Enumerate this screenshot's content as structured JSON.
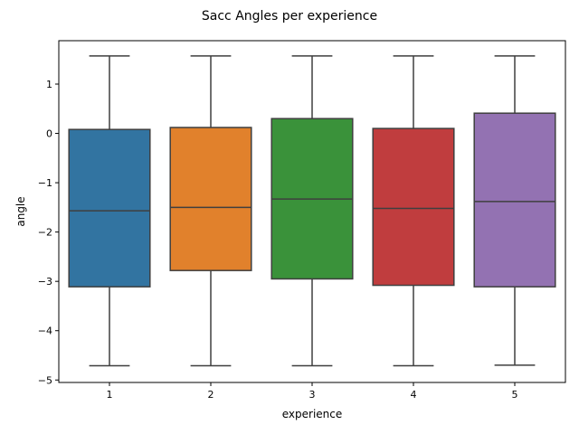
{
  "chart_data": {
    "type": "box",
    "title": "Sacc Angles per experience",
    "xlabel": "experience",
    "ylabel": "angle",
    "categories": [
      "1",
      "2",
      "3",
      "4",
      "5"
    ],
    "y_ticks": [
      1,
      0,
      -1,
      -2,
      -3,
      -4,
      -5
    ],
    "y_tick_labels": [
      "1",
      "0",
      "−1",
      "−2",
      "−3",
      "−4",
      "−5"
    ],
    "ylim": [
      -5.05,
      1.88
    ],
    "grid": false,
    "boxes": [
      {
        "category": "1",
        "min": -4.71,
        "q1": -3.11,
        "median": -1.57,
        "q3": 0.08,
        "max": 1.57,
        "color": "#3274a1"
      },
      {
        "category": "2",
        "min": -4.71,
        "q1": -2.78,
        "median": -1.5,
        "q3": 0.12,
        "max": 1.57,
        "color": "#e1812c"
      },
      {
        "category": "3",
        "min": -4.71,
        "q1": -2.95,
        "median": -1.33,
        "q3": 0.3,
        "max": 1.57,
        "color": "#3a923a"
      },
      {
        "category": "4",
        "min": -4.71,
        "q1": -3.08,
        "median": -1.52,
        "q3": 0.1,
        "max": 1.57,
        "color": "#c03d3e"
      },
      {
        "category": "5",
        "min": -4.7,
        "q1": -3.11,
        "median": -1.38,
        "q3": 0.41,
        "max": 1.57,
        "color": "#9372b2"
      }
    ]
  }
}
